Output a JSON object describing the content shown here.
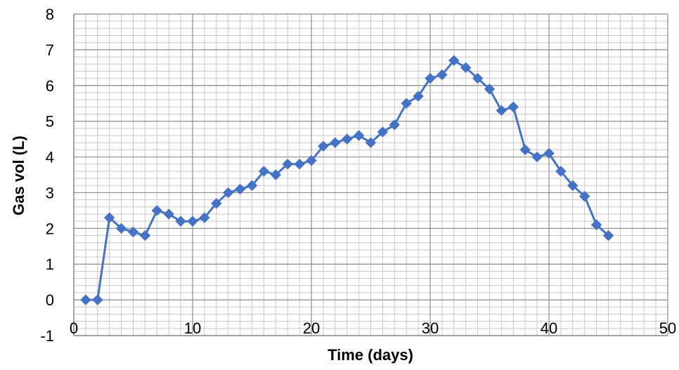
{
  "chart_data": {
    "type": "line",
    "title": "",
    "xlabel": "Time (days)",
    "ylabel": "Gas vol (L)",
    "xlim": [
      0,
      50
    ],
    "ylim": [
      -1,
      8
    ],
    "x_ticks": [
      0,
      10,
      20,
      30,
      40,
      50
    ],
    "x_tick_labels": [
      "0",
      "10",
      "20",
      "30",
      "40",
      "50"
    ],
    "y_ticks": [
      -1,
      0,
      1,
      2,
      3,
      4,
      5,
      6,
      7,
      8
    ],
    "y_tick_labels": [
      "-1",
      "0",
      "1",
      "2",
      "3",
      "4",
      "5",
      "6",
      "7",
      "8"
    ],
    "major_grid_x_step": 10,
    "major_grid_y_step": 1,
    "minor_grid_x_step": 1,
    "minor_grid_y_step": 0.2,
    "grid": true,
    "legend": false,
    "marker": "diamond",
    "colors": {
      "series": "#4472C4",
      "major_grid": "#8c8c8c",
      "minor_grid": "#c8c8c8",
      "axis": "#8c8c8c",
      "background": "#ffffff"
    },
    "series": [
      {
        "x": [
          1,
          2,
          3,
          4,
          5,
          6,
          7,
          8,
          9,
          10,
          11,
          12,
          13,
          14,
          15,
          16,
          17,
          18,
          19,
          20,
          21,
          22,
          23,
          24,
          25,
          26,
          27,
          28,
          29,
          30,
          31,
          32,
          33,
          34,
          35,
          36,
          37,
          38,
          39,
          40,
          41,
          42,
          43,
          44,
          45
        ],
        "values": [
          0.0,
          0.0,
          2.3,
          2.0,
          1.9,
          1.8,
          2.5,
          2.4,
          2.2,
          2.2,
          2.3,
          2.7,
          3.0,
          3.1,
          3.2,
          3.6,
          3.5,
          3.8,
          3.8,
          3.9,
          4.3,
          4.4,
          4.5,
          4.6,
          4.4,
          4.7,
          4.9,
          5.5,
          5.7,
          6.2,
          6.3,
          6.7,
          6.5,
          6.2,
          5.9,
          5.3,
          5.4,
          4.2,
          4.0,
          4.1,
          3.6,
          3.2,
          2.9,
          2.1,
          1.8
        ]
      }
    ]
  }
}
